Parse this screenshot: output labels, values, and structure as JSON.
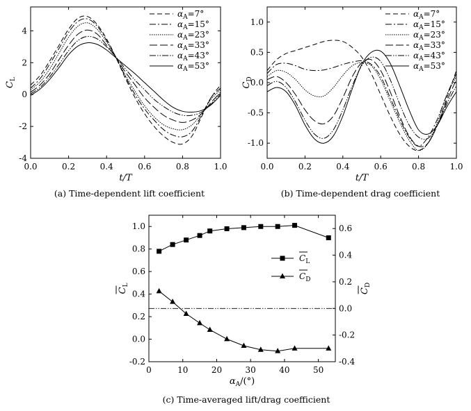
{
  "chart_data": [
    {
      "type": "line",
      "caption": "(a) Time-dependent lift coefficient",
      "xlabel": "t/T",
      "ylabel": "C_L",
      "xlim": [
        0,
        1.0
      ],
      "ylim": [
        -4,
        5.5
      ],
      "xticks": [
        "0.0",
        "0.2",
        "0.4",
        "0.6",
        "0.8",
        "1.0"
      ],
      "yticks": [
        "-4",
        "-2",
        "0",
        "2",
        "4"
      ],
      "legend_position": "top-right",
      "x": [
        0,
        0.05,
        0.1,
        0.15,
        0.2,
        0.25,
        0.3,
        0.35,
        0.4,
        0.45,
        0.5,
        0.55,
        0.6,
        0.65,
        0.7,
        0.75,
        0.8,
        0.85,
        0.9,
        0.95,
        1.0
      ],
      "series": [
        {
          "name": "α_A=7°",
          "dash": "7,4",
          "values": [
            0.6,
            1.2,
            2.1,
            3.1,
            4.1,
            4.8,
            4.9,
            4.4,
            3.5,
            2.3,
            1.0,
            -0.2,
            -1.2,
            -2.0,
            -2.6,
            -3.0,
            -3.1,
            -2.6,
            -1.4,
            -0.2,
            0.6
          ]
        },
        {
          "name": "α_A=15°",
          "dash": "9,3,2,3",
          "values": [
            0.4,
            1.0,
            1.9,
            2.9,
            3.9,
            4.6,
            4.75,
            4.3,
            3.4,
            2.3,
            1.1,
            0.0,
            -0.9,
            -1.6,
            -2.2,
            -2.55,
            -2.65,
            -2.3,
            -1.3,
            -0.2,
            0.4
          ]
        },
        {
          "name": "α_A=23°",
          "dash": "1.5,1.5",
          "values": [
            0.3,
            0.8,
            1.6,
            2.6,
            3.6,
            4.3,
            4.5,
            4.1,
            3.3,
            2.3,
            1.2,
            0.2,
            -0.7,
            -1.4,
            -1.9,
            -2.15,
            -2.2,
            -1.9,
            -1.2,
            -0.3,
            0.3
          ]
        },
        {
          "name": "α_A=33°",
          "dash": "11,4",
          "values": [
            0.15,
            0.6,
            1.3,
            2.2,
            3.1,
            3.8,
            4.05,
            3.8,
            3.1,
            2.3,
            1.4,
            0.6,
            -0.2,
            -0.8,
            -1.3,
            -1.6,
            -1.75,
            -1.6,
            -1.2,
            -0.5,
            0.15
          ]
        },
        {
          "name": "α_A=43°",
          "dash": "9,2,1.5,2,1.5,2",
          "values": [
            0.05,
            0.45,
            1.1,
            1.9,
            2.75,
            3.4,
            3.65,
            3.5,
            3.0,
            2.35,
            1.6,
            0.9,
            0.3,
            -0.3,
            -0.75,
            -1.1,
            -1.3,
            -1.3,
            -1.1,
            -0.6,
            0.05
          ]
        },
        {
          "name": "α_A=53°",
          "dash": "",
          "values": [
            -0.05,
            0.35,
            0.95,
            1.7,
            2.5,
            3.05,
            3.25,
            3.15,
            2.8,
            2.3,
            1.8,
            1.3,
            0.75,
            0.2,
            -0.35,
            -0.8,
            -1.05,
            -1.1,
            -1.0,
            -0.65,
            -0.05
          ]
        }
      ]
    },
    {
      "type": "line",
      "caption": "(b) Time-dependent drag coefficient",
      "xlabel": "t/T",
      "ylabel": "C_D",
      "xlim": [
        0,
        1.0
      ],
      "ylim": [
        -1.25,
        1.25
      ],
      "xticks": [
        "0.0",
        "0.2",
        "0.4",
        "0.6",
        "0.8",
        "1.0"
      ],
      "yticks": [
        "-1.0",
        "-0.5",
        "0.0",
        "0.5",
        "1.0"
      ],
      "legend_position": "top-right",
      "x": [
        0,
        0.05,
        0.1,
        0.15,
        0.2,
        0.25,
        0.3,
        0.35,
        0.4,
        0.45,
        0.5,
        0.55,
        0.6,
        0.65,
        0.7,
        0.75,
        0.8,
        0.85,
        0.9,
        0.95,
        1.0
      ],
      "series": [
        {
          "name": "α_A=7°",
          "dash": "7,4",
          "values": [
            0.2,
            0.38,
            0.48,
            0.53,
            0.58,
            0.63,
            0.68,
            0.7,
            0.68,
            0.58,
            0.42,
            0.15,
            -0.2,
            -0.55,
            -0.85,
            -1.05,
            -1.12,
            -1.0,
            -0.7,
            -0.25,
            0.2
          ]
        },
        {
          "name": "α_A=15°",
          "dash": "9,3,2,3",
          "values": [
            0.15,
            0.3,
            0.32,
            0.28,
            0.22,
            0.2,
            0.21,
            0.25,
            0.3,
            0.34,
            0.36,
            0.3,
            0.1,
            -0.25,
            -0.6,
            -0.9,
            -1.05,
            -0.9,
            -0.6,
            -0.2,
            0.15
          ]
        },
        {
          "name": "α_A=23°",
          "dash": "1.5,1.5",
          "values": [
            0.1,
            0.2,
            0.17,
            0.05,
            -0.12,
            -0.22,
            -0.22,
            -0.08,
            0.12,
            0.28,
            0.33,
            0.28,
            0.05,
            -0.3,
            -0.65,
            -0.95,
            -1.12,
            -1.0,
            -0.65,
            -0.2,
            0.1
          ]
        },
        {
          "name": "α_A=33°",
          "dash": "11,4",
          "values": [
            0.05,
            0.1,
            0.0,
            -0.2,
            -0.45,
            -0.63,
            -0.68,
            -0.55,
            -0.25,
            0.1,
            0.33,
            0.38,
            0.2,
            -0.15,
            -0.55,
            -0.88,
            -1.05,
            -1.0,
            -0.7,
            -0.3,
            0.05
          ]
        },
        {
          "name": "α_A=43°",
          "dash": "9,2,1.5,2,1.5,2",
          "values": [
            -0.05,
            0.02,
            -0.08,
            -0.32,
            -0.62,
            -0.85,
            -0.92,
            -0.78,
            -0.45,
            -0.05,
            0.28,
            0.42,
            0.35,
            0.05,
            -0.35,
            -0.7,
            -0.9,
            -0.92,
            -0.7,
            -0.35,
            -0.05
          ]
        },
        {
          "name": "α_A=53°",
          "dash": "",
          "values": [
            -0.15,
            -0.08,
            -0.15,
            -0.38,
            -0.7,
            -0.93,
            -1.0,
            -0.88,
            -0.55,
            -0.1,
            0.3,
            0.5,
            0.52,
            0.32,
            -0.05,
            -0.45,
            -0.78,
            -0.85,
            -0.7,
            -0.4,
            -0.15
          ]
        }
      ]
    },
    {
      "type": "line",
      "caption": "(c) Time-averaged lift/drag coefficient",
      "xlabel": "α_A/(°)",
      "ylabel_left": "C_L",
      "ylabel_right": "C_D",
      "xlim": [
        0,
        55
      ],
      "ylim_left": [
        -0.2,
        1.1
      ],
      "ylim_right": [
        -0.4,
        0.7
      ],
      "xticks": [
        "0",
        "10",
        "20",
        "30",
        "40",
        "50"
      ],
      "yticks_left": [
        "-0.2",
        "0.0",
        "0.2",
        "0.4",
        "0.6",
        "0.8",
        "1.0"
      ],
      "yticks_right": [
        "-0.4",
        "-0.2",
        "0.0",
        "0.2",
        "0.4",
        "0.6"
      ],
      "legend_position": "center-right",
      "reference_line_right_axis": 0.0,
      "series": [
        {
          "name": "C_L",
          "axis": "left",
          "marker": "square",
          "x": [
            3,
            7,
            11,
            15,
            18,
            23,
            28,
            33,
            38,
            43,
            53
          ],
          "values": [
            0.78,
            0.84,
            0.88,
            0.92,
            0.96,
            0.98,
            0.99,
            1.0,
            1.0,
            1.01,
            0.9
          ]
        },
        {
          "name": "C_D",
          "axis": "right",
          "marker": "triangle",
          "x": [
            3,
            7,
            11,
            15,
            18,
            23,
            28,
            33,
            38,
            43,
            53
          ],
          "values": [
            0.13,
            0.05,
            -0.04,
            -0.11,
            -0.16,
            -0.23,
            -0.28,
            -0.31,
            -0.32,
            -0.3,
            -0.3
          ]
        }
      ]
    }
  ]
}
